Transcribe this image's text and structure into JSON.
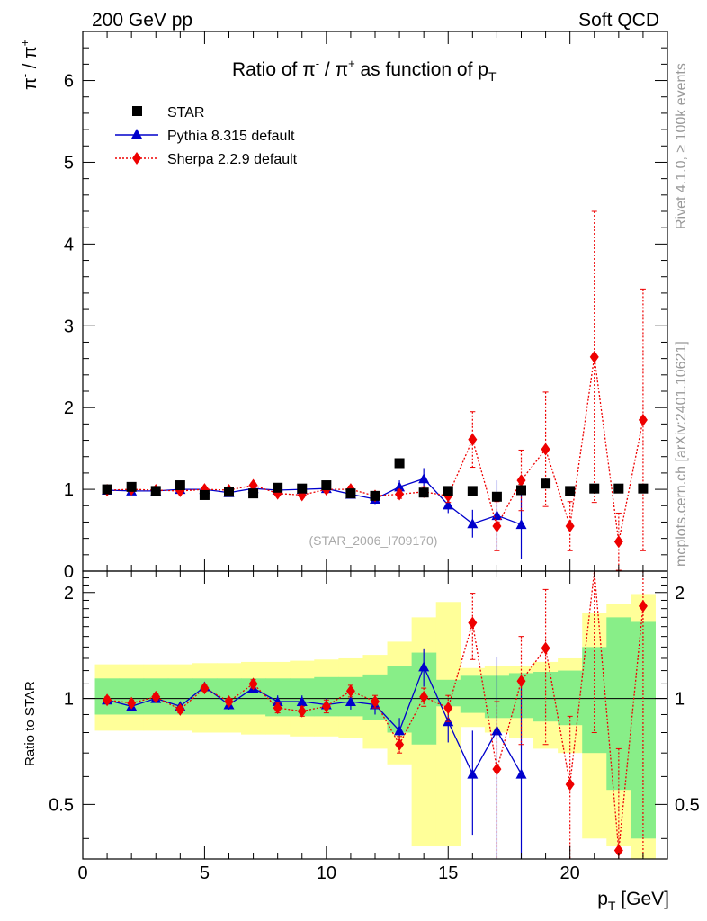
{
  "header": {
    "left": "200 GeV pp",
    "right": "Soft QCD"
  },
  "side_labels": {
    "rivet": "Rivet 4.1.0, ≥ 100k events",
    "mcplots": "mcplots.cern.ch [arXiv:2401.10621]"
  },
  "chart_data": {
    "type": "scatter",
    "title": "Ratio of π⁻ / π⁺ as function of p_T",
    "title_parts": {
      "a": "Ratio of ",
      "b": "π",
      "c": "-",
      "d": " / ",
      "e": "π",
      "f": "+",
      "g": " as function of p",
      "h": "T"
    },
    "ylabel_parts": {
      "a": "π",
      "b": "-",
      "c": " / ",
      "d": "π",
      "e": "+"
    },
    "xlabel_parts": {
      "a": "p",
      "b": "T",
      "c": " [GeV]"
    },
    "ratio_ylabel": "Ratio to STAR",
    "watermark": "(STAR_2006_I709170)",
    "xlim": [
      0,
      24
    ],
    "ylim_main": [
      0,
      6.6
    ],
    "ylim_ratio": [
      0.35,
      2.3
    ],
    "x_ticks": [
      0,
      5,
      10,
      15,
      20
    ],
    "x_tick_labels": [
      "0",
      "5",
      "10",
      "15",
      "20"
    ],
    "y_ticks_main": [
      0,
      1,
      2,
      3,
      4,
      5,
      6
    ],
    "y_tick_labels_main": [
      "0",
      "1",
      "2",
      "3",
      "4",
      "5",
      "6"
    ],
    "y_ticks_ratio": [
      0.5,
      1,
      2
    ],
    "y_tick_labels_ratio": [
      "0.5",
      "1",
      "2"
    ],
    "legend": [
      {
        "key": "star",
        "label": "STAR",
        "color": "#000000"
      },
      {
        "key": "pythia",
        "label": "Pythia 8.315 default",
        "color": "#0000cc"
      },
      {
        "key": "sherpa",
        "label": "Sherpa 2.2.9 default",
        "color": "#ee0000"
      }
    ],
    "star": {
      "x": [
        1,
        2,
        3,
        4,
        5,
        6,
        7,
        8,
        9,
        10,
        11,
        12,
        13,
        14,
        15,
        16,
        17,
        18,
        19,
        20,
        21,
        22,
        23
      ],
      "y": [
        1.0,
        1.03,
        0.98,
        1.05,
        0.93,
        0.97,
        0.95,
        1.02,
        1.01,
        1.05,
        0.95,
        0.92,
        1.32,
        0.96,
        0.98,
        0.98,
        0.91,
        0.99,
        1.07,
        0.98,
        1.01,
        1.01,
        1.01
      ]
    },
    "band_edges": [
      0.5,
      1.5,
      2.5,
      3.5,
      4.5,
      5.5,
      6.5,
      7.5,
      8.5,
      9.5,
      10.5,
      11.5,
      12.5,
      13.5,
      14.5,
      15.5,
      16.5,
      17.5,
      18.5,
      19.5,
      20.5,
      21.5,
      22.5,
      23.5
    ],
    "band_stat": [
      [
        0.9,
        1.14
      ],
      [
        0.9,
        1.14
      ],
      [
        0.9,
        1.14
      ],
      [
        0.9,
        1.14
      ],
      [
        0.9,
        1.14
      ],
      [
        0.9,
        1.14
      ],
      [
        0.9,
        1.14
      ],
      [
        0.89,
        1.14
      ],
      [
        0.89,
        1.14
      ],
      [
        0.89,
        1.15
      ],
      [
        0.89,
        1.15
      ],
      [
        0.87,
        1.17
      ],
      [
        0.8,
        1.24
      ],
      [
        0.74,
        1.35
      ],
      [
        0.95,
        1.13
      ],
      [
        0.91,
        1.16
      ],
      [
        0.88,
        1.16
      ],
      [
        0.88,
        1.18
      ],
      [
        0.86,
        1.19
      ],
      [
        0.84,
        1.2
      ],
      [
        0.7,
        1.4
      ],
      [
        0.55,
        1.7
      ],
      [
        0.4,
        1.65
      ]
    ],
    "band_total": [
      [
        0.81,
        1.25
      ],
      [
        0.81,
        1.25
      ],
      [
        0.81,
        1.25
      ],
      [
        0.81,
        1.25
      ],
      [
        0.8,
        1.26
      ],
      [
        0.8,
        1.26
      ],
      [
        0.79,
        1.27
      ],
      [
        0.79,
        1.27
      ],
      [
        0.78,
        1.28
      ],
      [
        0.78,
        1.29
      ],
      [
        0.77,
        1.3
      ],
      [
        0.72,
        1.33
      ],
      [
        0.65,
        1.45
      ],
      [
        0.38,
        1.7
      ],
      [
        0.38,
        1.88
      ],
      [
        0.83,
        1.22
      ],
      [
        0.8,
        1.24
      ],
      [
        0.77,
        1.24
      ],
      [
        0.72,
        1.27
      ],
      [
        0.7,
        1.3
      ],
      [
        0.4,
        1.75
      ],
      [
        0.38,
        1.85
      ],
      [
        0.35,
        1.98
      ]
    ],
    "series": [
      {
        "name": "Pythia 8.315 default",
        "key": "pythia",
        "x": [
          1,
          2,
          3,
          4,
          5,
          6,
          7,
          8,
          9,
          10,
          11,
          12,
          13,
          14,
          15,
          16,
          17,
          18
        ],
        "y": [
          0.99,
          0.98,
          0.98,
          1.0,
          1.0,
          0.96,
          1.01,
          0.99,
          1.0,
          1.01,
          0.94,
          0.88,
          1.03,
          1.13,
          0.81,
          0.58,
          0.68,
          0.57
        ],
        "err": [
          0.02,
          0.02,
          0.02,
          0.02,
          0.02,
          0.03,
          0.03,
          0.04,
          0.04,
          0.04,
          0.05,
          0.06,
          0.08,
          0.13,
          0.1,
          0.17,
          0.43,
          0.42
        ],
        "ratio_y": [
          0.99,
          0.95,
          1.0,
          0.95,
          1.08,
          0.96,
          1.07,
          0.98,
          0.98,
          0.96,
          0.98,
          0.96,
          0.81,
          1.23,
          0.86,
          0.61,
          0.81,
          0.61
        ],
        "ratio_err": [
          0.02,
          0.02,
          0.02,
          0.02,
          0.02,
          0.03,
          0.03,
          0.04,
          0.04,
          0.04,
          0.05,
          0.06,
          0.07,
          0.15,
          0.11,
          0.2,
          0.5,
          0.5
        ]
      },
      {
        "name": "Sherpa 2.2.9 default",
        "key": "sherpa",
        "x": [
          1,
          2,
          3,
          4,
          5,
          6,
          7,
          8,
          9,
          10,
          11,
          12,
          13,
          14,
          15,
          16,
          17,
          18,
          19,
          20,
          21,
          22,
          23
        ],
        "y": [
          0.99,
          1.0,
          0.99,
          0.98,
          1.0,
          0.99,
          1.05,
          0.95,
          0.93,
          1.0,
          1.0,
          0.92,
          0.94,
          0.97,
          0.92,
          1.61,
          0.55,
          1.11,
          1.49,
          0.55,
          2.62,
          0.36,
          1.85
        ],
        "err": [
          0.02,
          0.02,
          0.02,
          0.02,
          0.02,
          0.02,
          0.03,
          0.03,
          0.03,
          0.04,
          0.04,
          0.04,
          0.05,
          0.06,
          0.08,
          0.34,
          0.3,
          0.37,
          0.7,
          0.3,
          1.78,
          0.35,
          1.6
        ],
        "ratio_y": [
          0.99,
          0.97,
          1.01,
          0.93,
          1.07,
          0.98,
          1.1,
          0.94,
          0.92,
          0.95,
          1.05,
          0.98,
          0.74,
          1.01,
          0.94,
          1.64,
          0.63,
          1.12,
          1.39,
          0.57,
          2.6,
          0.37,
          1.83
        ],
        "ratio_err": [
          0.02,
          0.02,
          0.02,
          0.02,
          0.02,
          0.02,
          0.03,
          0.03,
          0.03,
          0.04,
          0.04,
          0.04,
          0.04,
          0.06,
          0.08,
          0.35,
          0.35,
          0.38,
          0.65,
          0.32,
          1.8,
          0.35,
          1.6
        ]
      }
    ]
  }
}
